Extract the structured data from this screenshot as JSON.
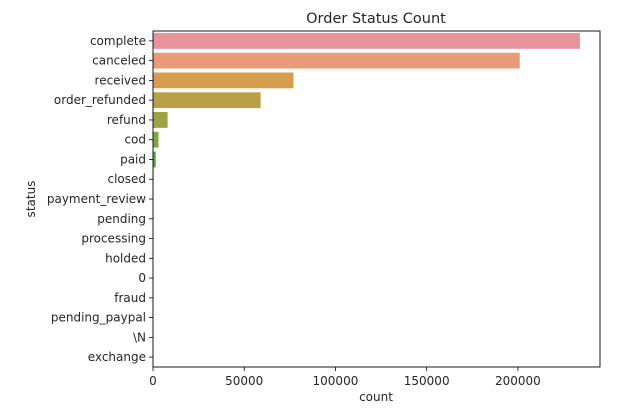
{
  "chart_data": {
    "type": "bar",
    "orientation": "horizontal",
    "title": "Order Status Count",
    "xlabel": "count",
    "ylabel": "status",
    "xlim": [
      0,
      245000
    ],
    "xticks": [
      0,
      50000,
      100000,
      150000,
      200000
    ],
    "xtick_labels": [
      "0",
      "50000",
      "100000",
      "150000",
      "200000"
    ],
    "grid": false,
    "legend": "none",
    "categories": [
      "complete",
      "canceled",
      "received",
      "order_refunded",
      "refund",
      "cod",
      "paid",
      "closed",
      "payment_review",
      "pending",
      "processing",
      "holded",
      "0",
      "fraud",
      "pending_paypal",
      "\\N",
      "exchange"
    ],
    "values": [
      234000,
      201000,
      77000,
      59000,
      8000,
      3000,
      1500,
      300,
      200,
      150,
      120,
      100,
      80,
      60,
      40,
      20,
      10
    ],
    "colors": [
      "#e8929c",
      "#e99a78",
      "#d69d51",
      "#b9a046",
      "#9ea33f",
      "#7ea73c",
      "#53a83c",
      "#3aab5c",
      "#3aa886",
      "#3ba69b",
      "#3ca3ab",
      "#3f9fbb",
      "#4a98d1",
      "#8a8ce0",
      "#b385e0",
      "#d67cd2",
      "#e27fb8"
    ]
  }
}
